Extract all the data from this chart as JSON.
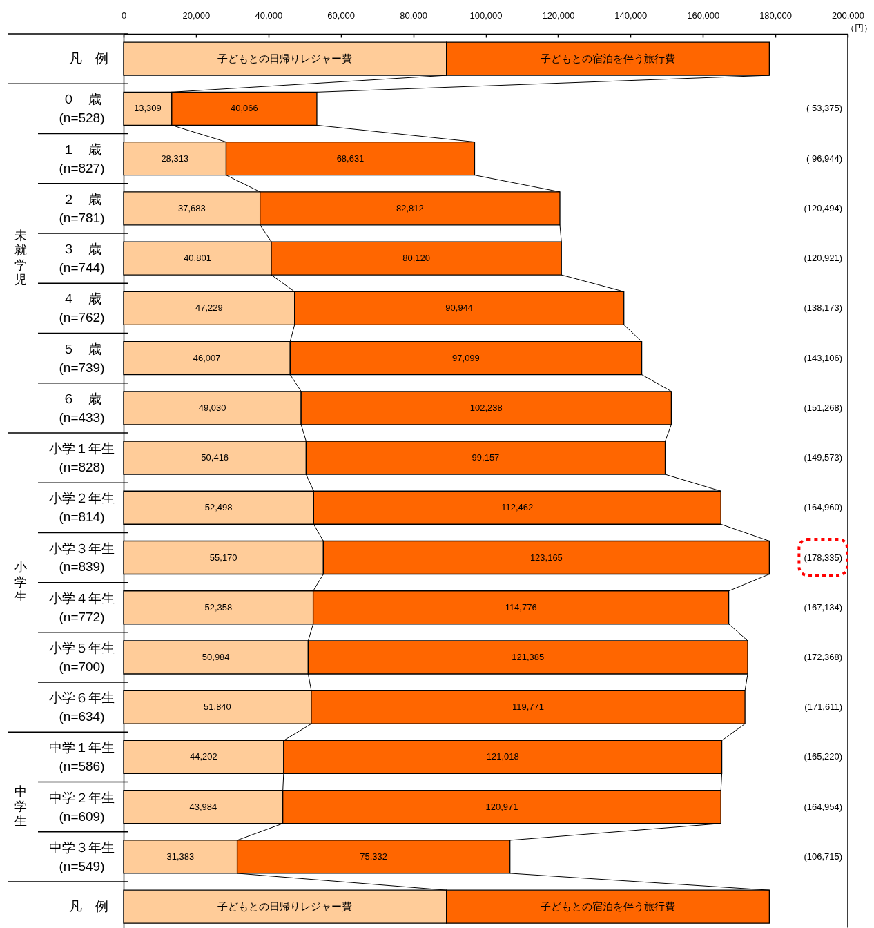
{
  "chart_data": {
    "type": "bar",
    "orientation": "horizontal",
    "stacked": true,
    "xlabel": "（円）",
    "legend_title": "凡　例",
    "legend": "bottom",
    "categories": [
      "０　歳\n(n=528)",
      "１　歳\n(n=827)",
      "２　歳\n(n=781)",
      "３　歳\n(n=744)",
      "４　歳\n(n=762)",
      "５　歳\n(n=739)",
      "６　歳\n(n=433)",
      "小学１年生\n(n=828)",
      "小学２年生\n(n=814)",
      "小学３年生\n(n=839)",
      "小学４年生\n(n=772)",
      "小学５年生\n(n=700)",
      "小学６年生\n(n=634)",
      "中学１年生\n(n=586)",
      "中学２年生\n(n=609)",
      "中学３年生\n(n=549)"
    ],
    "series": [
      {
        "name": "子どもとの日帰りレジャー費",
        "color": "#ffcc99",
        "values": [
          13309,
          28313,
          37683,
          40801,
          47229,
          46007,
          49030,
          50416,
          52498,
          55170,
          52358,
          50984,
          51840,
          44202,
          43984,
          31383
        ],
        "value_labels": [
          "13,309",
          "28,313",
          "37,683",
          "40,801",
          "47,229",
          "46,007",
          "49,030",
          "50,416",
          "52,498",
          "55,170",
          "52,358",
          "50,984",
          "51,840",
          "44,202",
          "43,984",
          "31,383"
        ]
      },
      {
        "name": "子どもとの宿泊を伴う旅行費",
        "color": "#ff6600",
        "values": [
          40066,
          68631,
          82812,
          80120,
          90944,
          97099,
          102238,
          99157,
          112462,
          123165,
          114776,
          121385,
          119771,
          121018,
          120971,
          75332
        ],
        "value_labels": [
          "40,066",
          "68,631",
          "82,812",
          "80,120",
          "90,944",
          "97,099",
          "102,238",
          "99,157",
          "112,462",
          "123,165",
          "114,776",
          "121,385",
          "119,771",
          "121,018",
          "120,971",
          "75,332"
        ]
      }
    ],
    "xlim": [
      0,
      200000
    ],
    "xticks": [
      {
        "value": 0,
        "label": "0"
      },
      {
        "value": 20000,
        "label": "20,000"
      },
      {
        "value": 40000,
        "label": "40,000"
      },
      {
        "value": 60000,
        "label": "60,000"
      },
      {
        "value": 80000,
        "label": "80,000"
      },
      {
        "value": 100000,
        "label": "100,000"
      },
      {
        "value": 120000,
        "label": "120,000"
      },
      {
        "value": 140000,
        "label": "140,000"
      },
      {
        "value": 160000,
        "label": "160,000"
      },
      {
        "value": 180000,
        "label": "180,000"
      },
      {
        "value": 200000,
        "label": "200,000"
      }
    ],
    "annotations": [
      "未就学児",
      "小学生",
      "中学生",
      "( 53,375)",
      "( 96,944)",
      "(120,494)",
      "(120,921)",
      "(138,173)",
      "(143,106)",
      "(151,268)",
      "(149,573)",
      "(164,960)",
      "(178,335)",
      "(167,134)",
      "(172,368)",
      "(171,611)",
      "(165,220)",
      "(164,954)",
      "(106,715)"
    ]
  }
}
